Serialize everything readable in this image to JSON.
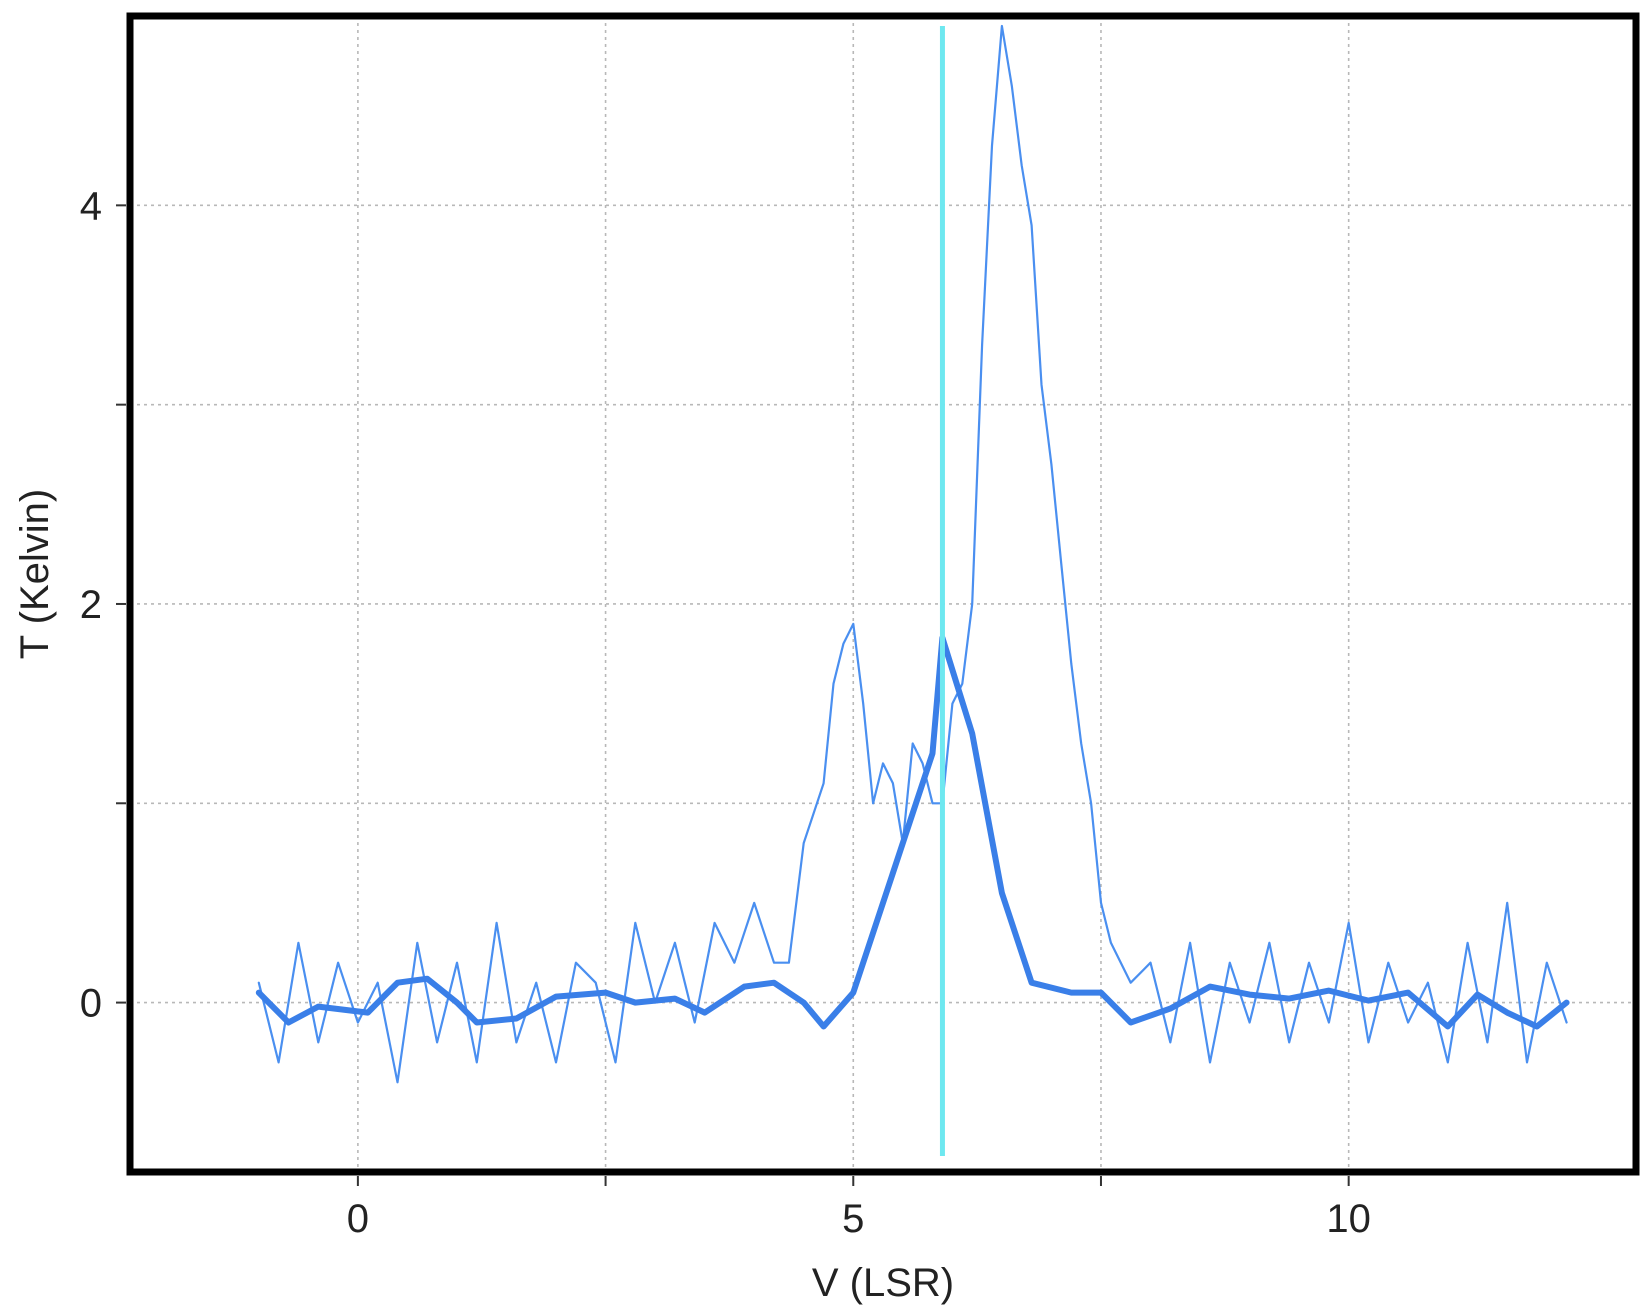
{
  "chart_data": {
    "type": "line",
    "title": "",
    "xlabel": "V (LSR)",
    "ylabel": "T (Kelvin)",
    "xlim": [
      -2.3,
      12.9
    ],
    "ylim": [
      -0.85,
      4.95
    ],
    "x_ticks": [
      0,
      2.5,
      5,
      7.5,
      10
    ],
    "x_tick_labels": [
      "0",
      "",
      "5",
      "",
      "10"
    ],
    "y_ticks": [
      0,
      1,
      2,
      3,
      4
    ],
    "y_tick_labels": [
      "0",
      "",
      "2",
      "",
      "4"
    ],
    "grid": true,
    "marker_line": {
      "x": 5.9,
      "color": "#6ee8f0"
    },
    "series": [
      {
        "style": "thin",
        "color": "#4a8ff0",
        "x": [
          -1.0,
          -0.8,
          -0.6,
          -0.4,
          -0.2,
          0.0,
          0.2,
          0.4,
          0.6,
          0.8,
          1.0,
          1.2,
          1.4,
          1.6,
          1.8,
          2.0,
          2.2,
          2.4,
          2.6,
          2.8,
          3.0,
          3.2,
          3.4,
          3.6,
          3.8,
          4.0,
          4.2,
          4.35,
          4.5,
          4.7,
          4.8,
          4.9,
          5.0,
          5.1,
          5.2,
          5.3,
          5.4,
          5.5,
          5.6,
          5.7,
          5.8,
          5.9,
          6.0,
          6.1,
          6.2,
          6.3,
          6.4,
          6.5,
          6.6,
          6.7,
          6.8,
          6.9,
          7.0,
          7.1,
          7.2,
          7.3,
          7.4,
          7.5,
          7.6,
          7.8,
          8.0,
          8.2,
          8.4,
          8.6,
          8.8,
          9.0,
          9.2,
          9.4,
          9.6,
          9.8,
          10.0,
          10.2,
          10.4,
          10.6,
          10.8,
          11.0,
          11.2,
          11.4,
          11.6,
          11.8,
          12.0,
          12.2
        ],
        "y": [
          0.1,
          -0.3,
          0.3,
          -0.2,
          0.2,
          -0.1,
          0.1,
          -0.4,
          0.3,
          -0.2,
          0.2,
          -0.3,
          0.4,
          -0.2,
          0.1,
          -0.3,
          0.2,
          0.1,
          -0.3,
          0.4,
          0.0,
          0.3,
          -0.1,
          0.4,
          0.2,
          0.5,
          0.2,
          0.2,
          0.8,
          1.1,
          1.6,
          1.8,
          1.9,
          1.5,
          1.0,
          1.2,
          1.1,
          0.8,
          1.3,
          1.2,
          1.0,
          1.0,
          1.5,
          1.6,
          2.0,
          3.3,
          4.3,
          4.9,
          4.6,
          4.2,
          3.9,
          3.1,
          2.7,
          2.2,
          1.7,
          1.3,
          1.0,
          0.5,
          0.3,
          0.1,
          0.2,
          -0.2,
          0.3,
          -0.3,
          0.2,
          -0.1,
          0.3,
          -0.2,
          0.2,
          -0.1,
          0.4,
          -0.2,
          0.2,
          -0.1,
          0.1,
          -0.3,
          0.3,
          -0.2,
          0.5,
          -0.3,
          0.2,
          -0.1
        ]
      },
      {
        "style": "thick",
        "color": "#3a7fe8",
        "x": [
          -1.0,
          -0.7,
          -0.4,
          0.1,
          0.4,
          0.7,
          1.0,
          1.2,
          1.6,
          2.0,
          2.5,
          2.8,
          3.2,
          3.5,
          3.9,
          4.2,
          4.5,
          4.7,
          5.0,
          5.4,
          5.8,
          5.9,
          6.2,
          6.5,
          6.8,
          7.2,
          7.5,
          7.8,
          8.2,
          8.6,
          9.0,
          9.4,
          9.8,
          10.2,
          10.6,
          11.0,
          11.3,
          11.6,
          11.9,
          12.2
        ],
        "y": [
          0.05,
          -0.1,
          -0.02,
          -0.05,
          0.1,
          0.12,
          0.0,
          -0.1,
          -0.08,
          0.03,
          0.05,
          0.0,
          0.02,
          -0.05,
          0.08,
          0.1,
          0.0,
          -0.12,
          0.05,
          0.65,
          1.25,
          1.83,
          1.35,
          0.55,
          0.1,
          0.05,
          0.05,
          -0.1,
          -0.03,
          0.08,
          0.04,
          0.02,
          0.06,
          0.01,
          0.05,
          -0.12,
          0.04,
          -0.05,
          -0.12,
          0.0
        ]
      }
    ]
  }
}
